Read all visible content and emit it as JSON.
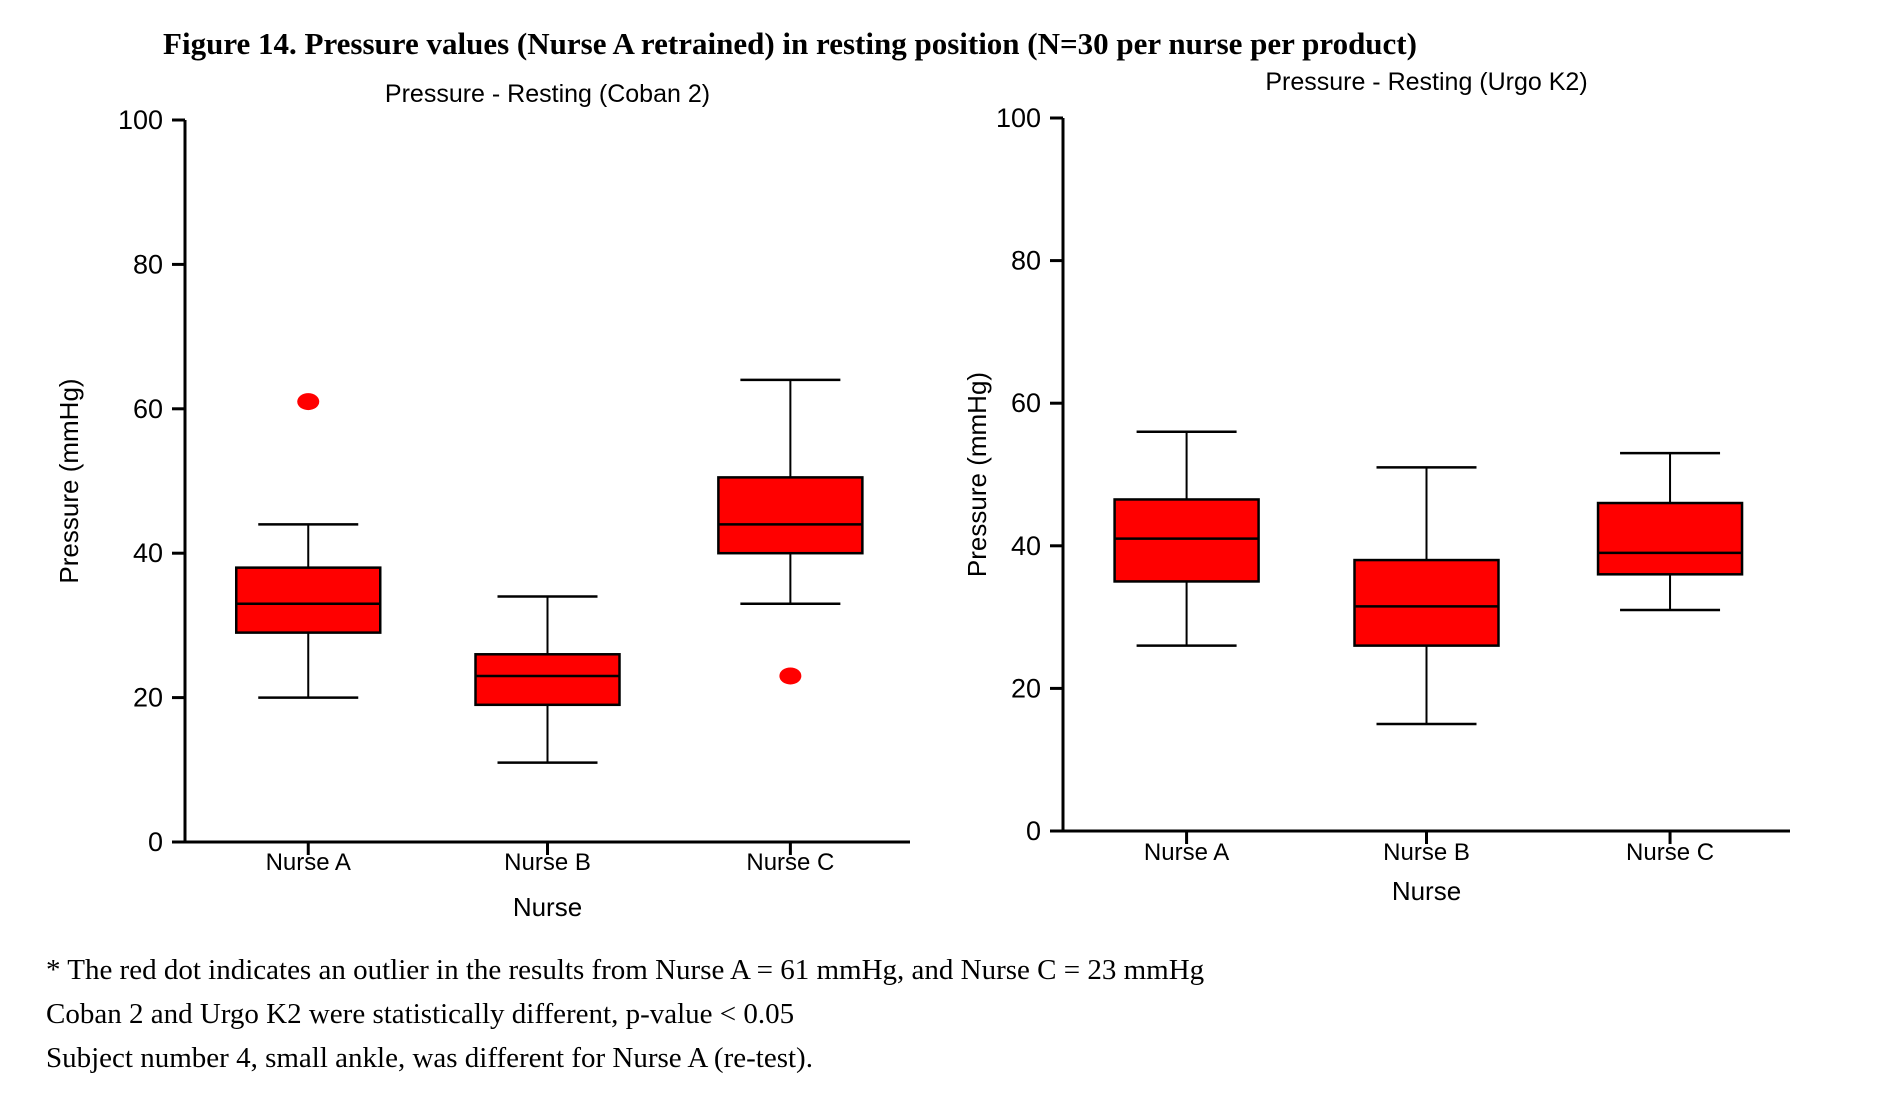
{
  "figure_title": "Figure 14. Pressure values (Nurse A retrained) in resting position (N=30 per nurse per product)",
  "footnotes": [
    "* The red dot indicates an outlier in the results from Nurse A = 61 mmHg, and Nurse C = 23 mmHg",
    "Coban 2 and Urgo K2 were statistically different, p-value < 0.05",
    "Subject number 4, small ankle, was different for Nurse A (re-test)."
  ],
  "colors": {
    "box_fill": "#FF0000",
    "box_stroke": "#000000",
    "outlier_fill": "#FF0000",
    "axis": "#000000",
    "text": "#000000"
  },
  "chart_data": [
    {
      "type": "boxplot",
      "title": "Pressure - Resting (Coban 2)",
      "xlabel": "Nurse",
      "ylabel": "Pressure (mmHg)",
      "ylim": [
        0,
        100
      ],
      "yticks": [
        0,
        20,
        40,
        60,
        80,
        100
      ],
      "grid": false,
      "categories": [
        "Nurse A",
        "Nurse B",
        "Nurse C"
      ],
      "boxes": [
        {
          "category": "Nurse A",
          "whisker_low": 20,
          "q1": 29,
          "median": 33,
          "q3": 38,
          "whisker_high": 44,
          "outliers": [
            61
          ]
        },
        {
          "category": "Nurse B",
          "whisker_low": 11,
          "q1": 19,
          "median": 23,
          "q3": 26,
          "whisker_high": 34,
          "outliers": []
        },
        {
          "category": "Nurse C",
          "whisker_low": 33,
          "q1": 40,
          "median": 44,
          "q3": 50.5,
          "whisker_high": 64,
          "outliers": [
            23
          ]
        }
      ]
    },
    {
      "type": "boxplot",
      "title": "Pressure - Resting (Urgo K2)",
      "xlabel": "Nurse",
      "ylabel": "Pressure (mmHg)",
      "ylim": [
        0,
        100
      ],
      "yticks": [
        0,
        20,
        40,
        60,
        80,
        100
      ],
      "grid": false,
      "categories": [
        "Nurse A",
        "Nurse B",
        "Nurse C"
      ],
      "boxes": [
        {
          "category": "Nurse A",
          "whisker_low": 26,
          "q1": 35,
          "median": 41,
          "q3": 46.5,
          "whisker_high": 56,
          "outliers": []
        },
        {
          "category": "Nurse B",
          "whisker_low": 15,
          "q1": 26,
          "median": 31.5,
          "q3": 38,
          "whisker_high": 51,
          "outliers": []
        },
        {
          "category": "Nurse C",
          "whisker_low": 31,
          "q1": 36,
          "median": 39,
          "q3": 46,
          "whisker_high": 53,
          "outliers": []
        }
      ]
    }
  ]
}
